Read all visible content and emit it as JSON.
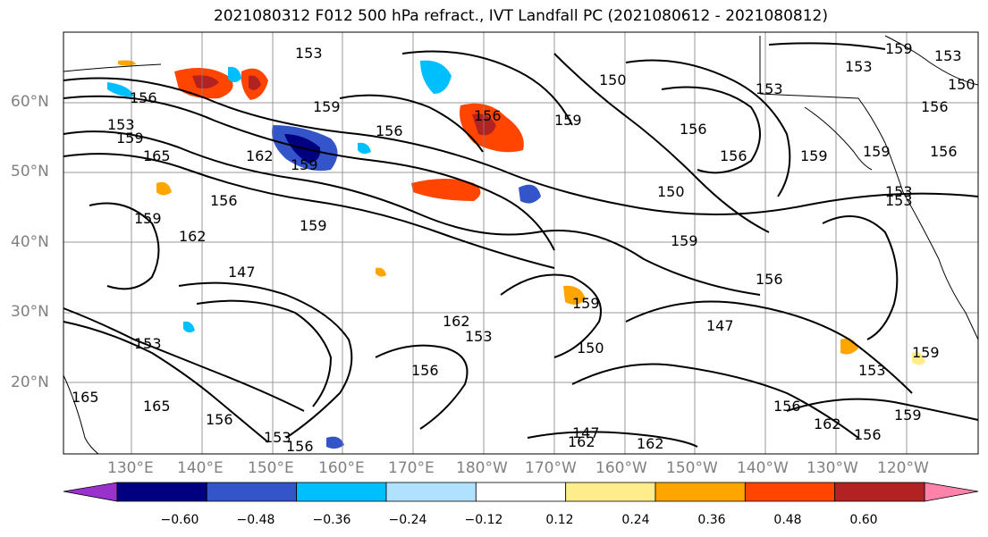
{
  "title": "2021080312 F012 500 hPa refract., IVT Landfall PC (2021080612 - 2021080812)",
  "lat_labels": [
    "60°N",
    "50°N",
    "40°N",
    "30°N",
    "20°N"
  ],
  "lon_labels": [
    "130°E",
    "140°E",
    "150°E",
    "160°E",
    "170°E",
    "180°W",
    "170°W",
    "160°W",
    "150°W",
    "140°W",
    "130°W",
    "120°W"
  ],
  "colorbar": {
    "colors": [
      "#9932cc",
      "#000080",
      "#3455c9",
      "#00bfff",
      "#b0e2ff",
      "#ffffff",
      "#ffec8b",
      "#ffa500",
      "#ff4500",
      "#b22222",
      "#ff82ab"
    ],
    "ticks": [
      "−0.60",
      "−0.48",
      "−0.36",
      "−0.24",
      "−0.12",
      "0.12",
      "0.24",
      "0.36",
      "0.48",
      "0.60"
    ]
  },
  "contour_labels": [
    "153",
    "156",
    "159",
    "153",
    "156",
    "159",
    "156",
    "159",
    "150",
    "156",
    "159",
    "153",
    "156",
    "150",
    "153",
    "153",
    "156",
    "159",
    "156",
    "159",
    "165",
    "162",
    "159",
    "147",
    "159",
    "153",
    "156",
    "162",
    "159",
    "153",
    "150",
    "147",
    "156",
    "153",
    "165",
    "156",
    "153",
    "156",
    "162",
    "159",
    "150",
    "159",
    "153",
    "156",
    "162",
    "147",
    "162",
    "162",
    "165",
    "153",
    "156",
    "159",
    "156",
    "159"
  ]
}
